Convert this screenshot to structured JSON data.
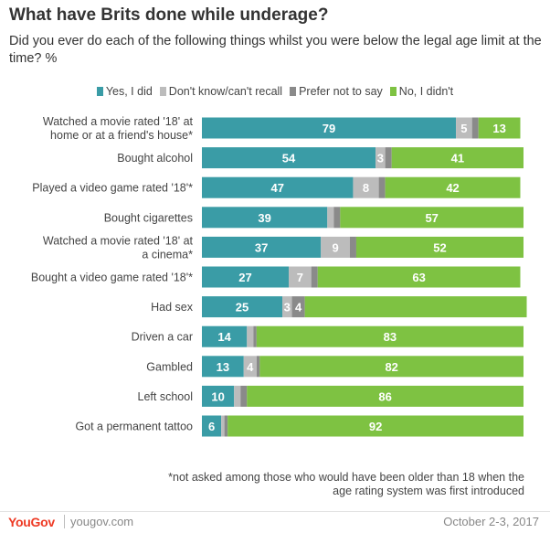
{
  "title": "What have Brits done while underage?",
  "subtitle": "Did you ever do each of the following things whilst you were below the legal age limit at the time? %",
  "footnote": "*not asked among those who would have been older than 18 when the age rating system was first introduced",
  "footer": {
    "logo": "YouGov",
    "site": "yougov.com",
    "date": "October 2-3, 2017"
  },
  "chart_data": {
    "type": "bar",
    "orientation": "horizontal",
    "stacked": true,
    "unit": "%",
    "xlim": [
      0,
      100
    ],
    "grid": false,
    "legend_position": "top",
    "categories": [
      "Watched a movie rated '18' at home or at a friend's house*",
      "Bought alcohol",
      "Played a video game rated '18'*",
      "Bought cigarettes",
      "Watched a movie rated '18' at a cinema*",
      "Bought a video game rated '18'*",
      "Had sex",
      "Driven a car",
      "Gambled",
      "Left school",
      "Got a permanent tattoo"
    ],
    "series": [
      {
        "name": "Yes, I did",
        "color": "#3a9ca6",
        "values": [
          79,
          54,
          47,
          39,
          37,
          27,
          25,
          14,
          13,
          10,
          6
        ]
      },
      {
        "name": "Don't know/can't recall",
        "color": "#bcbcbc",
        "values": [
          5,
          3,
          8,
          2,
          9,
          7,
          3,
          2,
          4,
          2,
          1
        ]
      },
      {
        "name": "Prefer not to say",
        "color": "#8a8a8a",
        "values": [
          2,
          2,
          2,
          2,
          2,
          2,
          4,
          1,
          1,
          2,
          1
        ]
      },
      {
        "name": "No, I didn't",
        "color": "#7ec242",
        "values": [
          13,
          41,
          42,
          57,
          52,
          63,
          69,
          83,
          82,
          86,
          92
        ]
      }
    ],
    "value_labels": [
      [
        "79",
        "5",
        "",
        "13"
      ],
      [
        "54",
        "3",
        "",
        "41"
      ],
      [
        "47",
        "8",
        "",
        "42"
      ],
      [
        "39",
        "",
        "",
        "57"
      ],
      [
        "37",
        "9",
        "",
        "52"
      ],
      [
        "27",
        "7",
        "",
        "63"
      ],
      [
        "25",
        "3",
        "4",
        ""
      ],
      [
        "14",
        "",
        "",
        "83"
      ],
      [
        "13",
        "4",
        "",
        "82"
      ],
      [
        "10",
        "",
        "",
        "86"
      ],
      [
        "6",
        "",
        "",
        "92"
      ]
    ],
    "category_label_lines": [
      [
        "Watched a movie rated '18' at",
        "home or at a friend's house*"
      ],
      [
        "Bought alcohol"
      ],
      [
        "Played a video game rated '18'*"
      ],
      [
        "Bought cigarettes"
      ],
      [
        "Watched a movie rated '18' at",
        "a cinema*"
      ],
      [
        "Bought a video game rated '18'*"
      ],
      [
        "Had sex"
      ],
      [
        "Driven a car"
      ],
      [
        "Gambled"
      ],
      [
        "Left school"
      ],
      [
        "Got a permanent tattoo"
      ]
    ]
  }
}
